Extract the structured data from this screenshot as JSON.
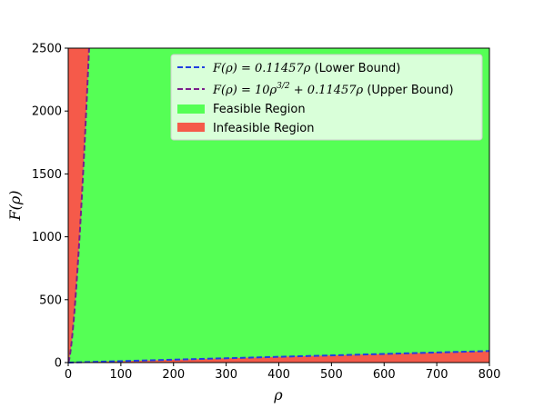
{
  "chart_data": {
    "type": "area",
    "title": "",
    "xlabel": "ρ",
    "ylabel": "F(ρ)",
    "xlim": [
      0,
      800
    ],
    "ylim": [
      0,
      2500
    ],
    "xticks": [
      0,
      100,
      200,
      300,
      400,
      500,
      600,
      700,
      800
    ],
    "yticks": [
      0,
      500,
      1000,
      1500,
      2000,
      2500
    ],
    "grid": false,
    "legend_position": "top-right",
    "colors": {
      "feasible": "#55ff55",
      "infeasible": "#f55a4a",
      "lower_bound": "#1f3fe0",
      "upper_bound": "#7a1f8a"
    },
    "series": [
      {
        "name": "F(ρ) = 0.11457ρ (Lower Bound)",
        "kind": "line",
        "style": "dashed",
        "coef_linear": 0.11457,
        "coef_power": 0,
        "points": [
          [
            0,
            0
          ],
          [
            800,
            91.656
          ]
        ]
      },
      {
        "name": "F(ρ) = 10ρ^{3/2} + 0.11457ρ (Upper Bound)",
        "kind": "line",
        "style": "dashed",
        "coef_linear": 0.11457,
        "coef_power": 10,
        "points": [
          [
            0,
            0
          ],
          [
            5,
            112.4
          ],
          [
            10,
            317.4
          ],
          [
            15,
            582.8
          ],
          [
            20,
            896.7
          ],
          [
            25,
            1252.9
          ],
          [
            30,
            1646.6
          ],
          [
            35,
            2074.6
          ],
          [
            39.6,
            2496.5
          ]
        ]
      },
      {
        "name": "Feasible Region",
        "kind": "fill"
      },
      {
        "name": "Infeasible Region",
        "kind": "fill"
      }
    ],
    "legend": {
      "lower": {
        "math": "F(ρ) = 0.11457ρ",
        "text": " (Lower Bound)"
      },
      "upper": {
        "math_a": "F(ρ) = 10ρ",
        "sup": "3/2",
        "math_b": " + 0.11457ρ",
        "text": " (Upper Bound)"
      },
      "feasible": "Feasible Region",
      "infeasible": "Infeasible Region"
    }
  }
}
